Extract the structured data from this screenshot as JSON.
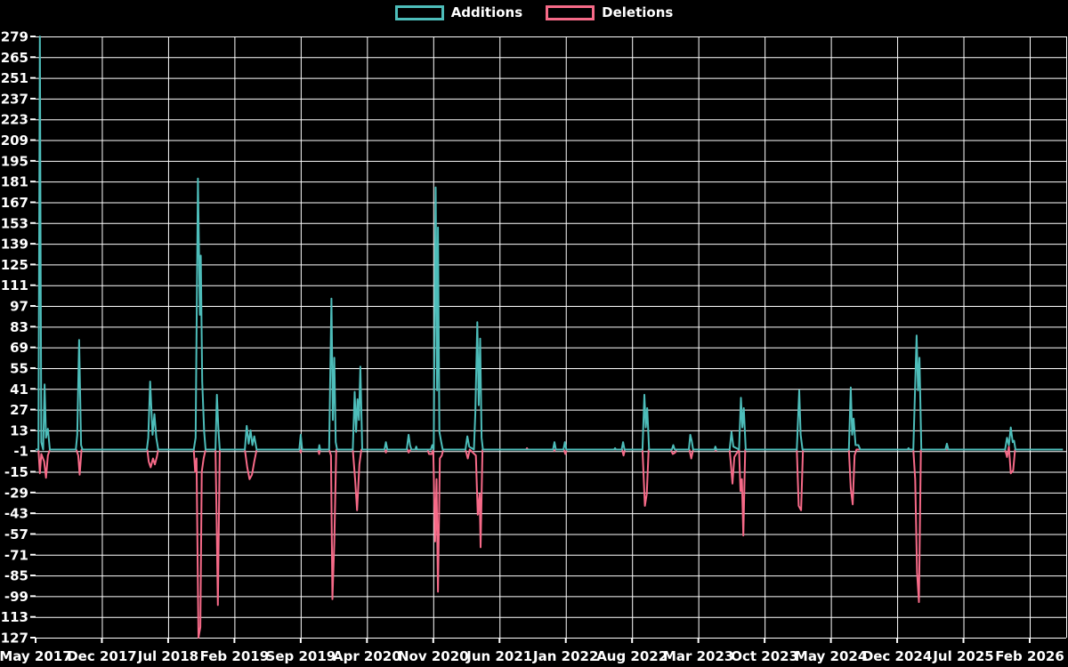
{
  "chart_data": {
    "type": "line",
    "title": "",
    "background": "#000000",
    "grid_color": "#ffffff",
    "text_color": "#ffffff",
    "grid": true,
    "legend_position": "top-center",
    "x_axis": {
      "labels": [
        "May 2017",
        "Dec 2017",
        "Jul 2018",
        "Feb 2019",
        "Sep 2019",
        "Apr 2020",
        "Nov 2020",
        "Jun 2021",
        "Jan 2022",
        "Aug 2022",
        "Mar 2023",
        "Oct 2023",
        "May 2024",
        "Dec 2024",
        "Jul 2025",
        "Feb 2026"
      ],
      "months_per_label": 7,
      "total_months": 105
    },
    "y_axis": {
      "max": 279,
      "min": -127,
      "tick_step": 14
    },
    "series": [
      {
        "name": "Additions",
        "color": "#4dbdba",
        "points": [
          [
            0,
            0
          ],
          [
            0.3,
            0
          ],
          [
            0.45,
            279
          ],
          [
            0.6,
            5
          ],
          [
            0.8,
            0
          ],
          [
            0.95,
            44
          ],
          [
            1.1,
            8
          ],
          [
            1.3,
            14
          ],
          [
            1.5,
            0
          ],
          [
            4.25,
            0
          ],
          [
            4.4,
            10
          ],
          [
            4.6,
            74
          ],
          [
            4.8,
            3
          ],
          [
            4.95,
            0
          ],
          [
            11.75,
            0
          ],
          [
            11.9,
            8
          ],
          [
            12.1,
            46
          ],
          [
            12.35,
            10
          ],
          [
            12.55,
            24
          ],
          [
            12.75,
            8
          ],
          [
            12.95,
            0
          ],
          [
            16.7,
            0
          ],
          [
            16.9,
            8
          ],
          [
            17.15,
            183
          ],
          [
            17.35,
            91
          ],
          [
            17.45,
            131
          ],
          [
            17.6,
            46
          ],
          [
            17.8,
            12
          ],
          [
            17.95,
            0
          ],
          [
            19.0,
            0
          ],
          [
            19.15,
            37
          ],
          [
            19.3,
            15
          ],
          [
            19.45,
            0
          ],
          [
            22.1,
            0
          ],
          [
            22.3,
            16
          ],
          [
            22.5,
            4
          ],
          [
            22.7,
            13
          ],
          [
            22.9,
            3
          ],
          [
            23.1,
            9
          ],
          [
            23.35,
            0
          ],
          [
            27.85,
            0
          ],
          [
            28.0,
            10
          ],
          [
            28.15,
            0
          ],
          [
            29.9,
            0
          ],
          [
            29.97,
            3
          ],
          [
            30.05,
            0
          ],
          [
            31.0,
            0
          ],
          [
            31.25,
            102
          ],
          [
            31.4,
            20
          ],
          [
            31.55,
            62
          ],
          [
            31.7,
            5
          ],
          [
            31.85,
            0
          ],
          [
            33.5,
            0
          ],
          [
            33.7,
            39
          ],
          [
            33.85,
            12
          ],
          [
            34.0,
            34
          ],
          [
            34.15,
            20
          ],
          [
            34.3,
            56
          ],
          [
            34.5,
            0
          ],
          [
            36.85,
            0
          ],
          [
            37.0,
            5
          ],
          [
            37.15,
            0
          ],
          [
            39.2,
            0
          ],
          [
            39.4,
            10
          ],
          [
            39.55,
            3
          ],
          [
            39.7,
            0
          ],
          [
            40.1,
            0
          ],
          [
            40.2,
            2
          ],
          [
            40.3,
            0
          ],
          [
            41.75,
            0
          ],
          [
            41.9,
            3
          ],
          [
            42.05,
            0
          ],
          [
            42.25,
            177
          ],
          [
            42.4,
            40
          ],
          [
            42.5,
            150
          ],
          [
            42.65,
            12
          ],
          [
            42.85,
            5
          ],
          [
            43.0,
            0
          ],
          [
            45.4,
            0
          ],
          [
            45.6,
            9
          ],
          [
            45.8,
            2
          ],
          [
            46.3,
            0
          ],
          [
            46.45,
            25
          ],
          [
            46.65,
            86
          ],
          [
            46.8,
            30
          ],
          [
            46.95,
            75
          ],
          [
            47.1,
            8
          ],
          [
            47.25,
            0
          ],
          [
            54.65,
            0
          ],
          [
            54.8,
            5
          ],
          [
            54.95,
            0
          ],
          [
            55.75,
            0
          ],
          [
            55.9,
            5
          ],
          [
            56.05,
            0
          ],
          [
            61.1,
            0
          ],
          [
            61.2,
            1
          ],
          [
            61.3,
            0
          ],
          [
            61.9,
            0
          ],
          [
            62.05,
            5
          ],
          [
            62.2,
            0
          ],
          [
            64.1,
            0
          ],
          [
            64.3,
            37
          ],
          [
            64.45,
            15
          ],
          [
            64.6,
            28
          ],
          [
            64.8,
            0
          ],
          [
            67.2,
            0
          ],
          [
            67.35,
            3
          ],
          [
            67.5,
            0
          ],
          [
            69.0,
            0
          ],
          [
            69.15,
            10
          ],
          [
            69.3,
            6
          ],
          [
            69.45,
            0
          ],
          [
            71.7,
            0
          ],
          [
            71.8,
            2
          ],
          [
            71.9,
            0
          ],
          [
            73.3,
            0
          ],
          [
            73.5,
            12
          ],
          [
            73.7,
            2
          ],
          [
            74.3,
            0
          ],
          [
            74.5,
            35
          ],
          [
            74.65,
            15
          ],
          [
            74.8,
            28
          ],
          [
            75.0,
            0
          ],
          [
            80.4,
            0
          ],
          [
            80.65,
            40
          ],
          [
            80.8,
            10
          ],
          [
            81.0,
            0
          ],
          [
            85.9,
            0
          ],
          [
            86.1,
            42
          ],
          [
            86.25,
            10
          ],
          [
            86.4,
            21
          ],
          [
            86.6,
            3
          ],
          [
            86.9,
            3
          ],
          [
            87.1,
            0
          ],
          [
            92.1,
            0
          ],
          [
            92.2,
            1
          ],
          [
            92.3,
            0
          ],
          [
            92.7,
            0
          ],
          [
            92.85,
            31
          ],
          [
            93.05,
            77
          ],
          [
            93.2,
            40
          ],
          [
            93.35,
            62
          ],
          [
            93.55,
            0
          ],
          [
            96.1,
            0
          ],
          [
            96.25,
            4
          ],
          [
            96.4,
            0
          ],
          [
            102.4,
            0
          ],
          [
            102.6,
            8
          ],
          [
            102.8,
            3
          ],
          [
            103.0,
            15
          ],
          [
            103.2,
            5
          ],
          [
            103.35,
            6
          ],
          [
            103.5,
            0
          ],
          [
            108.5,
            0
          ]
        ]
      },
      {
        "name": "Deletions",
        "color": "#f66a88",
        "points": [
          [
            0,
            0
          ],
          [
            0.3,
            0
          ],
          [
            0.45,
            -16
          ],
          [
            0.6,
            -3
          ],
          [
            0.9,
            -8
          ],
          [
            1.1,
            -19
          ],
          [
            1.3,
            -4
          ],
          [
            1.5,
            0
          ],
          [
            4.3,
            0
          ],
          [
            4.5,
            -4
          ],
          [
            4.65,
            -17
          ],
          [
            4.85,
            0
          ],
          [
            11.8,
            0
          ],
          [
            11.95,
            -8
          ],
          [
            12.15,
            -12
          ],
          [
            12.4,
            -6
          ],
          [
            12.6,
            -10
          ],
          [
            12.8,
            -5
          ],
          [
            12.95,
            0
          ],
          [
            16.7,
            0
          ],
          [
            16.85,
            -15
          ],
          [
            17.0,
            -6
          ],
          [
            17.2,
            -127
          ],
          [
            17.4,
            -120
          ],
          [
            17.55,
            -15
          ],
          [
            17.75,
            -6
          ],
          [
            17.95,
            0
          ],
          [
            19.0,
            0
          ],
          [
            19.1,
            -39
          ],
          [
            19.25,
            -105
          ],
          [
            19.45,
            0
          ],
          [
            22.1,
            0
          ],
          [
            22.35,
            -12
          ],
          [
            22.6,
            -20
          ],
          [
            22.85,
            -17
          ],
          [
            23.1,
            -8
          ],
          [
            23.35,
            0
          ],
          [
            27.9,
            0
          ],
          [
            28.0,
            -2
          ],
          [
            28.1,
            0
          ],
          [
            29.85,
            0
          ],
          [
            29.95,
            -3
          ],
          [
            30.05,
            0
          ],
          [
            31.0,
            0
          ],
          [
            31.2,
            -4
          ],
          [
            31.35,
            -101
          ],
          [
            31.55,
            -63
          ],
          [
            31.75,
            0
          ],
          [
            33.5,
            0
          ],
          [
            33.75,
            -20
          ],
          [
            33.95,
            -41
          ],
          [
            34.2,
            -10
          ],
          [
            34.4,
            0
          ],
          [
            36.9,
            0
          ],
          [
            37.0,
            -2
          ],
          [
            37.1,
            0
          ],
          [
            39.3,
            0
          ],
          [
            39.4,
            -2
          ],
          [
            39.6,
            0
          ],
          [
            41.4,
            0
          ],
          [
            41.55,
            -3
          ],
          [
            41.85,
            -3
          ],
          [
            42.0,
            0
          ],
          [
            42.2,
            -62
          ],
          [
            42.35,
            -20
          ],
          [
            42.5,
            -96
          ],
          [
            42.7,
            -6
          ],
          [
            42.9,
            -4
          ],
          [
            43.05,
            0
          ],
          [
            45.4,
            0
          ],
          [
            45.65,
            -6
          ],
          [
            45.85,
            0
          ],
          [
            46.5,
            -4
          ],
          [
            46.7,
            -44
          ],
          [
            46.9,
            -30
          ],
          [
            47.0,
            -66
          ],
          [
            47.2,
            0
          ],
          [
            51.8,
            0
          ],
          [
            51.9,
            1
          ],
          [
            52.0,
            0
          ],
          [
            54.7,
            0
          ],
          [
            54.8,
            -1
          ],
          [
            54.9,
            0
          ],
          [
            55.8,
            0
          ],
          [
            55.95,
            -3
          ],
          [
            56.1,
            0
          ],
          [
            61.95,
            0
          ],
          [
            62.1,
            -4
          ],
          [
            62.25,
            0
          ],
          [
            64.1,
            0
          ],
          [
            64.35,
            -38
          ],
          [
            64.55,
            -30
          ],
          [
            64.75,
            0
          ],
          [
            67.1,
            0
          ],
          [
            67.3,
            -3
          ],
          [
            67.55,
            -2
          ],
          [
            67.7,
            0
          ],
          [
            69.05,
            0
          ],
          [
            69.25,
            -6
          ],
          [
            69.45,
            0
          ],
          [
            71.75,
            0
          ],
          [
            71.85,
            -1
          ],
          [
            71.95,
            0
          ],
          [
            73.3,
            0
          ],
          [
            73.45,
            -11
          ],
          [
            73.6,
            -23
          ],
          [
            73.8,
            -5
          ],
          [
            74.3,
            0
          ],
          [
            74.45,
            -28
          ],
          [
            74.6,
            -20
          ],
          [
            74.75,
            -58
          ],
          [
            74.95,
            0
          ],
          [
            80.4,
            0
          ],
          [
            80.6,
            -38
          ],
          [
            80.85,
            -41
          ],
          [
            81.05,
            0
          ],
          [
            85.9,
            0
          ],
          [
            86.1,
            -26
          ],
          [
            86.3,
            -37
          ],
          [
            86.5,
            -4
          ],
          [
            86.7,
            0
          ],
          [
            92.7,
            0
          ],
          [
            92.9,
            -20
          ],
          [
            93.1,
            -83
          ],
          [
            93.3,
            -103
          ],
          [
            93.5,
            0
          ],
          [
            102.4,
            0
          ],
          [
            102.6,
            -5
          ],
          [
            102.8,
            2
          ],
          [
            103.0,
            -16
          ],
          [
            103.25,
            -14
          ],
          [
            103.45,
            0
          ],
          [
            108.5,
            0
          ]
        ]
      }
    ]
  }
}
